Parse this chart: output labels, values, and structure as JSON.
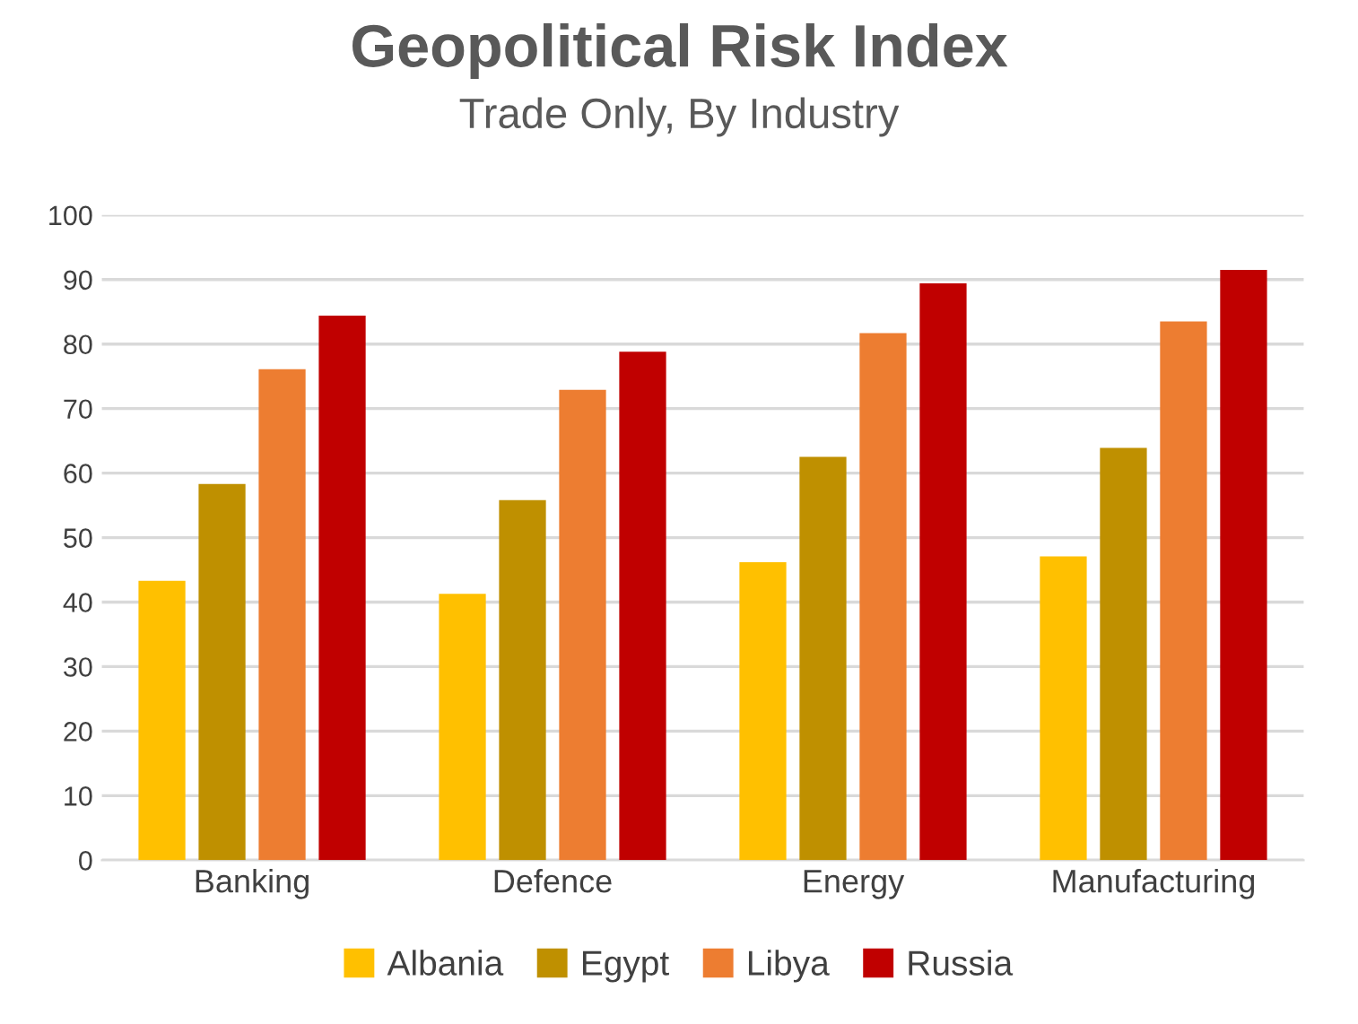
{
  "chart_data": {
    "type": "bar",
    "title": "Geopolitical Risk Index",
    "subtitle": "Trade Only, By Industry",
    "categories": [
      "Banking",
      "Defence",
      "Energy",
      "Manufacturing"
    ],
    "series": [
      {
        "name": "Albania",
        "color": "#ffc000",
        "values": [
          43.3,
          41.3,
          46.2,
          47.1
        ]
      },
      {
        "name": "Egypt",
        "color": "#bf9000",
        "values": [
          58.3,
          55.8,
          62.5,
          63.9
        ]
      },
      {
        "name": "Libya",
        "color": "#ed7d31",
        "values": [
          76.1,
          72.9,
          81.7,
          83.5
        ]
      },
      {
        "name": "Russia",
        "color": "#c00000",
        "values": [
          84.4,
          78.8,
          89.4,
          91.5
        ]
      }
    ],
    "ylim": [
      0,
      100
    ],
    "yticks": [
      0,
      10,
      20,
      30,
      40,
      50,
      60,
      70,
      80,
      90,
      100
    ],
    "grid": "y",
    "legend": "bottom"
  }
}
